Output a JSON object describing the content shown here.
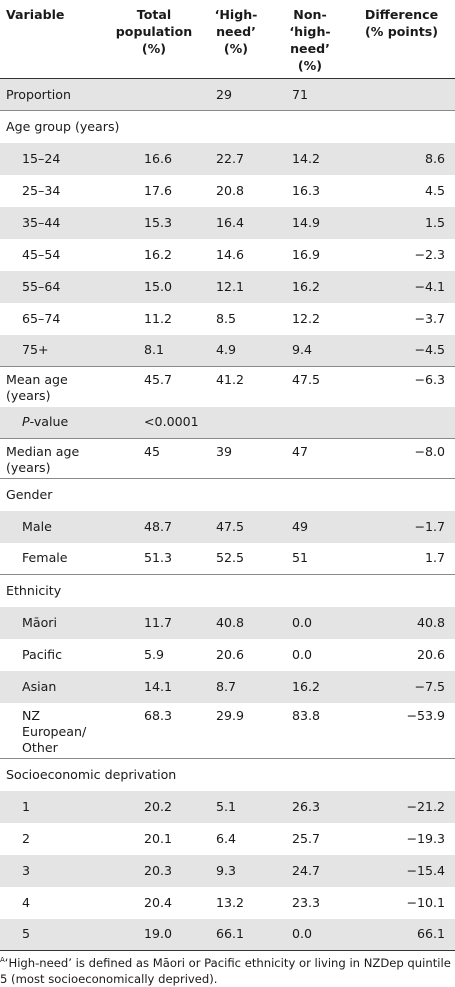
{
  "table": {
    "headers": {
      "variable": "Variable",
      "total": [
        "Total",
        "population",
        "(%)"
      ],
      "high": [
        "‘High-",
        "need’",
        "(%)"
      ],
      "non": [
        "Non-",
        "‘high-",
        "need’ (%)"
      ],
      "diff": [
        "Difference",
        "(% points)"
      ]
    },
    "rows": [
      {
        "label": "Proportion",
        "total": "",
        "high": "29",
        "non": "71",
        "diff": ""
      },
      {
        "label": "Age group (years)",
        "total": "",
        "high": "",
        "non": "",
        "diff": ""
      },
      {
        "label": "15–24",
        "total": "16.6",
        "high": "22.7",
        "non": "14.2",
        "diff": "8.6"
      },
      {
        "label": "25–34",
        "total": "17.6",
        "high": "20.8",
        "non": "16.3",
        "diff": "4.5"
      },
      {
        "label": "35–44",
        "total": "15.3",
        "high": "16.4",
        "non": "14.9",
        "diff": "1.5"
      },
      {
        "label": "45–54",
        "total": "16.2",
        "high": "14.6",
        "non": "16.9",
        "diff": "−2.3"
      },
      {
        "label": "55–64",
        "total": "15.0",
        "high": "12.1",
        "non": "16.2",
        "diff": "−4.1"
      },
      {
        "label": "65–74",
        "total": "11.2",
        "high": "8.5",
        "non": "12.2",
        "diff": "−3.7"
      },
      {
        "label": "75+",
        "total": "8.1",
        "high": "4.9",
        "non": "9.4",
        "diff": "−4.5"
      },
      {
        "label": "Mean age (years)",
        "total": "45.7",
        "high": "41.2",
        "non": "47.5",
        "diff": "−6.3"
      },
      {
        "label_italic": "P",
        "label": "-value",
        "total": "<0.0001",
        "high": "",
        "non": "",
        "diff": ""
      },
      {
        "label": "Median age (years)",
        "total": "45",
        "high": "39",
        "non": "47",
        "diff": "−8.0"
      },
      {
        "label": "Gender",
        "total": "",
        "high": "",
        "non": "",
        "diff": ""
      },
      {
        "label": "Male",
        "total": "48.7",
        "high": "47.5",
        "non": "49",
        "diff": "−1.7"
      },
      {
        "label": "Female",
        "total": "51.3",
        "high": "52.5",
        "non": "51",
        "diff": "1.7"
      },
      {
        "label": "Ethnicity",
        "total": "",
        "high": "",
        "non": "",
        "diff": ""
      },
      {
        "label": "Māori",
        "total": "11.7",
        "high": "40.8",
        "non": "0.0",
        "diff": "40.8"
      },
      {
        "label": "Pacific",
        "total": "5.9",
        "high": "20.6",
        "non": "0.0",
        "diff": "20.6"
      },
      {
        "label": "Asian",
        "total": "14.1",
        "high": "8.7",
        "non": "16.2",
        "diff": "−7.5"
      },
      {
        "label": "NZ European/ Other",
        "total": "68.3",
        "high": "29.9",
        "non": "83.8",
        "diff": "−53.9"
      },
      {
        "label": "Socioeconomic deprivation",
        "total": "",
        "high": "",
        "non": "",
        "diff": ""
      },
      {
        "label": "1",
        "total": "20.2",
        "high": "5.1",
        "non": "26.3",
        "diff": "−21.2"
      },
      {
        "label": "2",
        "total": "20.1",
        "high": "6.4",
        "non": "25.7",
        "diff": "−19.3"
      },
      {
        "label": "3",
        "total": "20.3",
        "high": "9.3",
        "non": "24.7",
        "diff": "−15.4"
      },
      {
        "label": "4",
        "total": "20.4",
        "high": "13.2",
        "non": "23.3",
        "diff": "−10.1"
      },
      {
        "label": "5",
        "total": "19.0",
        "high": "66.1",
        "non": "0.0",
        "diff": "66.1"
      }
    ]
  },
  "footnote": {
    "marker": "A",
    "text": "‘High-need’ is defined as Māori or Pacific ethnicity or living in NZDep quintile 5 (most socioeconomically deprived)."
  }
}
